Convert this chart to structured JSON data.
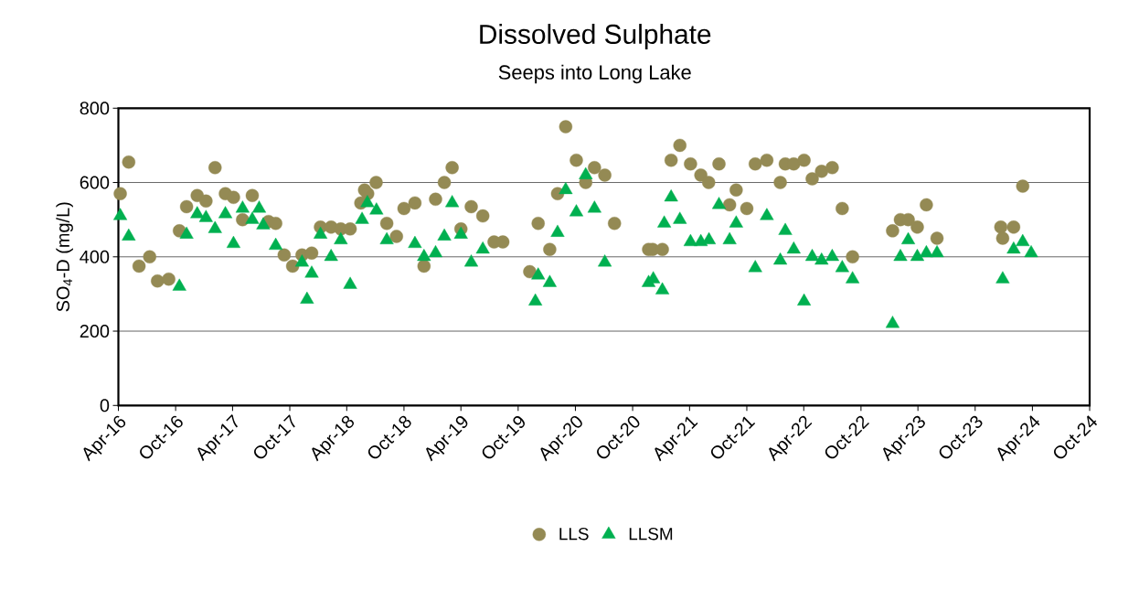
{
  "chart_data": {
    "type": "scatter",
    "title": "Dissolved Sulphate",
    "subtitle": "Seeps into Long Lake",
    "ylabel": "SO$_{4}$-D (mg/L)",
    "ylim": [
      0,
      800
    ],
    "yticks": [
      0,
      200,
      400,
      600,
      800
    ],
    "xlim": [
      "2016-04-01",
      "2024-10-01"
    ],
    "xticks": [
      {
        "value": "2016-04-01",
        "label": "Apr-16"
      },
      {
        "value": "2016-10-01",
        "label": "Oct-16"
      },
      {
        "value": "2017-04-01",
        "label": "Apr-17"
      },
      {
        "value": "2017-10-01",
        "label": "Oct-17"
      },
      {
        "value": "2018-04-01",
        "label": "Apr-18"
      },
      {
        "value": "2018-10-01",
        "label": "Oct-18"
      },
      {
        "value": "2019-04-01",
        "label": "Apr-19"
      },
      {
        "value": "2019-10-01",
        "label": "Oct-19"
      },
      {
        "value": "2020-04-01",
        "label": "Apr-20"
      },
      {
        "value": "2020-10-01",
        "label": "Oct-20"
      },
      {
        "value": "2021-04-01",
        "label": "Apr-21"
      },
      {
        "value": "2021-10-01",
        "label": "Oct-21"
      },
      {
        "value": "2022-04-01",
        "label": "Apr-22"
      },
      {
        "value": "2022-10-01",
        "label": "Oct-22"
      },
      {
        "value": "2023-04-01",
        "label": "Apr-23"
      },
      {
        "value": "2023-10-01",
        "label": "Oct-23"
      },
      {
        "value": "2024-04-01",
        "label": "Apr-24"
      },
      {
        "value": "2024-10-01",
        "label": "Oct-24"
      }
    ],
    "grid": "y",
    "legend": "bottom",
    "series": [
      {
        "name": "LLS",
        "color": "#948a54",
        "marker": "circle",
        "x": [
          "2016-04-07",
          "2016-05-04",
          "2016-06-06",
          "2016-07-10",
          "2016-08-04",
          "2016-09-09",
          "2016-10-13",
          "2016-11-05",
          "2016-12-09",
          "2017-01-06",
          "2017-02-04",
          "2017-03-09",
          "2017-04-04",
          "2017-05-03",
          "2017-06-03",
          "2017-07-25",
          "2017-08-17",
          "2017-09-13",
          "2017-10-10",
          "2017-11-09",
          "2017-12-10",
          "2018-01-07",
          "2018-02-10",
          "2018-03-13",
          "2018-04-12",
          "2018-05-16",
          "2018-05-28",
          "2018-06-07",
          "2018-07-04",
          "2018-08-07",
          "2018-09-07",
          "2018-10-01",
          "2018-11-05",
          "2018-12-04",
          "2019-01-10",
          "2019-02-07",
          "2019-03-04",
          "2019-04-01",
          "2019-05-04",
          "2019-06-10",
          "2019-07-16",
          "2019-08-13",
          "2019-11-07",
          "2019-12-04",
          "2020-01-10",
          "2020-02-04",
          "2020-03-01",
          "2020-04-04",
          "2020-05-04",
          "2020-06-01",
          "2020-07-04",
          "2020-08-04",
          "2020-11-21",
          "2020-12-04",
          "2021-01-04",
          "2021-02-01",
          "2021-03-01",
          "2021-04-04",
          "2021-05-07",
          "2021-06-01",
          "2021-07-04",
          "2021-08-07",
          "2021-08-28",
          "2021-10-01",
          "2021-10-28",
          "2021-12-04",
          "2022-01-16",
          "2022-02-01",
          "2022-02-28",
          "2022-04-02",
          "2022-04-28",
          "2022-05-28",
          "2022-07-01",
          "2022-08-02",
          "2022-09-04",
          "2023-01-10",
          "2023-02-04",
          "2023-03-01",
          "2023-03-30",
          "2023-04-28",
          "2023-06-01",
          "2023-12-22",
          "2023-12-28",
          "2024-02-01",
          "2024-03-01"
        ],
        "values": [
          570,
          655,
          375,
          400,
          335,
          340,
          470,
          535,
          565,
          550,
          640,
          570,
          560,
          500,
          565,
          495,
          490,
          405,
          375,
          405,
          410,
          480,
          480,
          475,
          475,
          545,
          580,
          570,
          600,
          490,
          455,
          530,
          545,
          375,
          555,
          600,
          640,
          475,
          535,
          510,
          440,
          440,
          360,
          490,
          420,
          570,
          750,
          660,
          600,
          640,
          620,
          490,
          420,
          420,
          420,
          660,
          700,
          650,
          620,
          600,
          650,
          540,
          580,
          530,
          650,
          660,
          600,
          650,
          650,
          660,
          610,
          630,
          640,
          530,
          400,
          470,
          500,
          500,
          480,
          540,
          450,
          480,
          450,
          480,
          590
        ]
      },
      {
        "name": "LLSM",
        "color": "#00b050",
        "marker": "triangle",
        "x": [
          "2016-04-07",
          "2016-05-04",
          "2016-10-13",
          "2016-11-05",
          "2016-12-09",
          "2017-01-06",
          "2017-02-04",
          "2017-03-09",
          "2017-04-04",
          "2017-05-03",
          "2017-06-03",
          "2017-06-25",
          "2017-07-08",
          "2017-08-17",
          "2017-11-09",
          "2017-11-25",
          "2017-12-10",
          "2018-01-07",
          "2018-02-10",
          "2018-03-13",
          "2018-04-12",
          "2018-05-20",
          "2018-06-06",
          "2018-07-05",
          "2018-08-07",
          "2018-11-05",
          "2018-12-04",
          "2019-01-10",
          "2019-02-07",
          "2019-03-04",
          "2019-04-01",
          "2019-05-04",
          "2019-06-10",
          "2019-11-25",
          "2019-12-04",
          "2020-01-10",
          "2020-02-04",
          "2020-03-01",
          "2020-04-04",
          "2020-05-04",
          "2020-06-01",
          "2020-07-04",
          "2020-11-21",
          "2020-12-06",
          "2021-01-04",
          "2021-01-10",
          "2021-02-01",
          "2021-03-01",
          "2021-04-04",
          "2021-05-07",
          "2021-06-02",
          "2021-07-04",
          "2021-08-07",
          "2021-08-28",
          "2021-10-28",
          "2021-12-04",
          "2022-01-16",
          "2022-02-01",
          "2022-02-28",
          "2022-04-02",
          "2022-04-28",
          "2022-05-28",
          "2022-07-01",
          "2022-08-02",
          "2022-09-04",
          "2023-01-10",
          "2023-02-04",
          "2023-03-01",
          "2023-03-30",
          "2023-04-28",
          "2023-06-01",
          "2023-12-28",
          "2024-02-01",
          "2024-03-01",
          "2024-03-28"
        ],
        "values": [
          510,
          455,
          320,
          460,
          515,
          505,
          475,
          515,
          435,
          530,
          500,
          530,
          485,
          430,
          385,
          285,
          355,
          460,
          400,
          445,
          325,
          500,
          545,
          525,
          445,
          435,
          400,
          410,
          455,
          545,
          460,
          385,
          420,
          280,
          350,
          330,
          465,
          580,
          520,
          620,
          530,
          385,
          330,
          340,
          310,
          490,
          560,
          500,
          440,
          440,
          445,
          540,
          445,
          490,
          370,
          510,
          390,
          470,
          420,
          280,
          400,
          390,
          400,
          370,
          340,
          220,
          400,
          445,
          400,
          410,
          410,
          340,
          420,
          440,
          410
        ]
      }
    ]
  }
}
